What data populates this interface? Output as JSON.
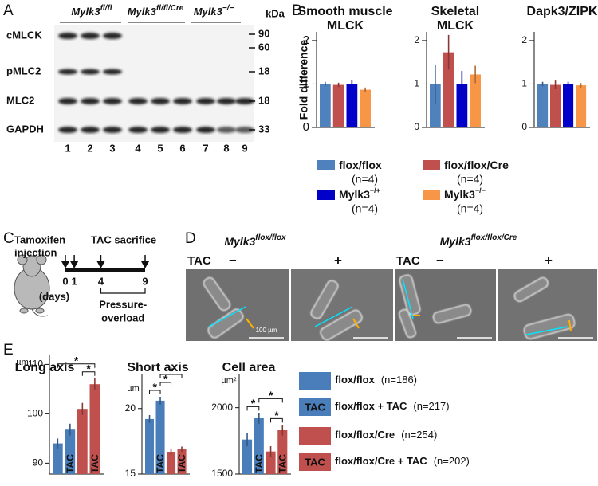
{
  "panels": {
    "a": "A",
    "b": "B",
    "c": "C",
    "d": "D",
    "e": "E"
  },
  "blot": {
    "groups": [
      {
        "base": "Mylk3",
        "sup": "fl/fl"
      },
      {
        "base": "Mylk3",
        "sup": "fl/fl/Cre"
      },
      {
        "base": "Mylk3",
        "sup": "−/−"
      }
    ],
    "unit": "kDa",
    "rows": [
      "cMLCK",
      "pMLC2",
      "MLC2",
      "GAPDH"
    ],
    "markers": [
      90,
      60,
      18,
      18,
      33
    ],
    "lanes": [
      1,
      2,
      3,
      4,
      5,
      6,
      7,
      8,
      9
    ]
  },
  "timeline": {
    "title": [
      "Tamoxifen",
      "injection"
    ],
    "event": "TAC sacrifice",
    "days": [
      0,
      1,
      4,
      9
    ],
    "days_label": "(days)",
    "phase": [
      "Pressure-",
      "overload"
    ]
  },
  "micrographs": {
    "groups": [
      {
        "base": "Mylk3",
        "sup": "flox/flox"
      },
      {
        "base": "Mylk3",
        "sup": "flox/flox/Cre"
      }
    ],
    "condition": "TAC",
    "minus": "−",
    "plus": "+",
    "scale_label": "100 µm"
  },
  "chart_data": [
    {
      "type": "bar",
      "title": [
        "Smooth muscle",
        "MLCK"
      ],
      "ylabel": "Fold difference",
      "ylim": [
        0,
        2.2
      ],
      "yticks": [
        0,
        1,
        2
      ],
      "ref_line": 1,
      "series": [
        {
          "name": "flox/flox",
          "n_label": "(n=4)",
          "color": "#4f81bd",
          "values": [
            1.0
          ],
          "errors": [
            0.05
          ]
        },
        {
          "name": "flox/flox/Cre",
          "n_label": "(n=4)",
          "color": "#c0504d",
          "values": [
            0.98
          ],
          "errors": [
            0.05
          ]
        },
        {
          "name": "Mylk3",
          "name_sup": "+/+",
          "n_label": "(n=4)",
          "color": "#0000c8",
          "values": [
            1.0
          ],
          "errors": [
            0.1
          ]
        },
        {
          "name": "Mylk3",
          "name_sup": "−/−",
          "n_label": "(n=4)",
          "color": "#f79646",
          "values": [
            0.87
          ],
          "errors": [
            0.05
          ]
        }
      ]
    },
    {
      "type": "bar",
      "title": [
        "Skeletal",
        "MLCK"
      ],
      "ylim": [
        0,
        2.2
      ],
      "yticks": [
        0,
        1,
        2
      ],
      "ref_line": 1,
      "series": [
        {
          "color": "#4f81bd",
          "values": [
            1.0
          ],
          "errors": [
            0.45
          ]
        },
        {
          "color": "#c0504d",
          "values": [
            1.73
          ],
          "errors": [
            0.4
          ]
        },
        {
          "color": "#0000c8",
          "values": [
            1.0
          ],
          "errors": [
            0.3
          ]
        },
        {
          "color": "#f79646",
          "values": [
            1.22
          ],
          "errors": [
            0.2
          ]
        }
      ]
    },
    {
      "type": "bar",
      "title": [
        "Dapk3/ZIPK"
      ],
      "ylim": [
        0,
        2.2
      ],
      "yticks": [
        0,
        1,
        2
      ],
      "ref_line": 1,
      "series": [
        {
          "color": "#4f81bd",
          "values": [
            1.0
          ],
          "errors": [
            0.05
          ]
        },
        {
          "color": "#c0504d",
          "values": [
            0.98
          ],
          "errors": [
            0.1
          ]
        },
        {
          "color": "#0000c8",
          "values": [
            1.0
          ],
          "errors": [
            0.05
          ]
        },
        {
          "color": "#f79646",
          "values": [
            0.97
          ],
          "errors": [
            0.05
          ]
        }
      ]
    },
    {
      "type": "bar",
      "title": "Long axis",
      "ylabel": "µm",
      "ylim": [
        87.8,
        112
      ],
      "yticks": [
        90,
        100,
        110
      ],
      "series": [
        {
          "name": "flox/flox",
          "n_label": "(n=186)",
          "color": "#4a7ebb",
          "values": [
            94
          ],
          "errors": [
            1
          ]
        },
        {
          "name": "flox/flox + TAC",
          "n_label": "(n=217)",
          "bar_label": "TAC",
          "color": "#4a7ebb",
          "values": [
            96.8
          ],
          "errors": [
            1.2
          ]
        },
        {
          "name": "flox/flox/Cre",
          "n_label": "(n=254)",
          "color": "#c0504d",
          "values": [
            101
          ],
          "errors": [
            1.2
          ]
        },
        {
          "name": "flox/flox/Cre + TAC",
          "n_label": "(n=202)",
          "bar_label": "TAC",
          "color": "#c0504d",
          "values": [
            106
          ],
          "errors": [
            1.2
          ]
        }
      ],
      "significance": [
        {
          "pair": [
            2,
            3
          ],
          "label": "*"
        },
        {
          "pair": [
            0,
            3
          ],
          "label": "*"
        }
      ]
    },
    {
      "type": "bar",
      "title": "Short axis",
      "ylabel": "µm",
      "ylim": [
        15,
        22.6
      ],
      "yticks": [
        15,
        20
      ],
      "series": [
        {
          "color": "#4a7ebb",
          "values": [
            19.2
          ],
          "errors": [
            0.3
          ]
        },
        {
          "bar_label": "TAC",
          "color": "#4a7ebb",
          "values": [
            20.6
          ],
          "errors": [
            0.3
          ]
        },
        {
          "color": "#c0504d",
          "values": [
            16.7
          ],
          "errors": [
            0.25
          ]
        },
        {
          "bar_label": "TAC",
          "color": "#c0504d",
          "values": [
            16.9
          ],
          "errors": [
            0.2
          ]
        }
      ],
      "significance": [
        {
          "pair": [
            0,
            1
          ],
          "label": "*"
        },
        {
          "pair": [
            1,
            2
          ],
          "label": "*"
        },
        {
          "pair": [
            1,
            3
          ],
          "label": "*"
        }
      ]
    },
    {
      "type": "bar",
      "title": "Cell area",
      "ylabel": "µm²",
      "ylim": [
        1500,
        2250
      ],
      "yticks": [
        1500,
        2000
      ],
      "series": [
        {
          "color": "#4a7ebb",
          "values": [
            1760
          ],
          "errors": [
            50
          ]
        },
        {
          "bar_label": "TAC",
          "color": "#4a7ebb",
          "values": [
            1920
          ],
          "errors": [
            40
          ]
        },
        {
          "color": "#c0504d",
          "values": [
            1670
          ],
          "errors": [
            40
          ]
        },
        {
          "bar_label": "TAC",
          "color": "#c0504d",
          "values": [
            1830
          ],
          "errors": [
            40
          ]
        }
      ],
      "significance": [
        {
          "pair": [
            0,
            1
          ],
          "label": "*"
        },
        {
          "pair": [
            2,
            3
          ],
          "label": "*"
        },
        {
          "pair": [
            1,
            3
          ],
          "label": "*"
        }
      ]
    }
  ]
}
